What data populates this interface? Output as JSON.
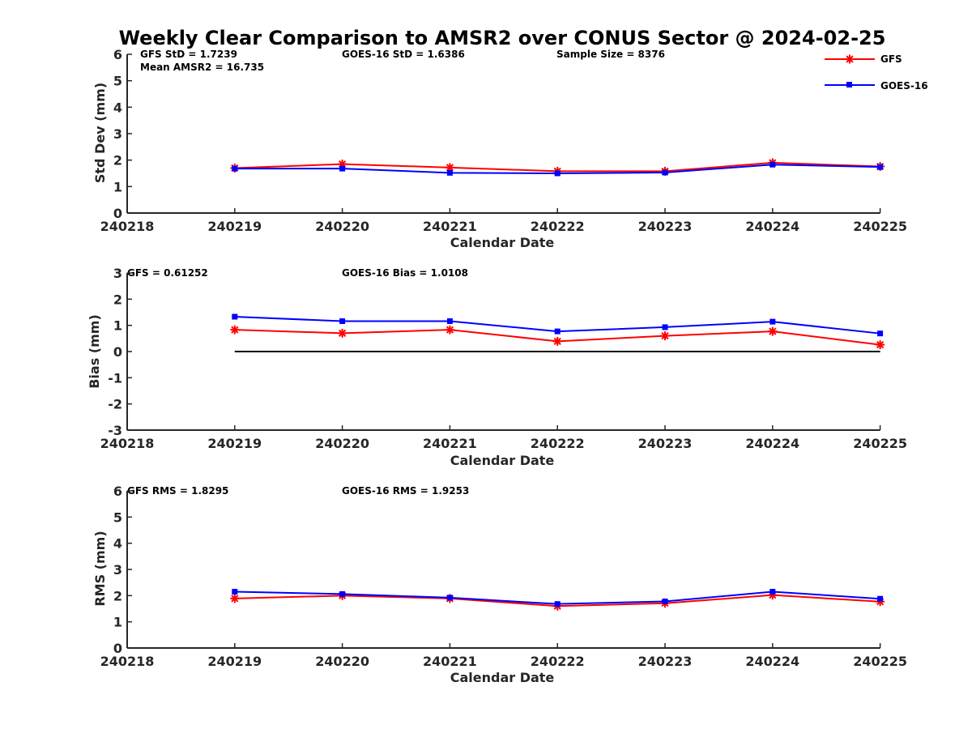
{
  "title": "Weekly Clear Comparison to AMSR2 over CONUS Sector @ 2024-02-25",
  "legend": [
    {
      "name": "GFS",
      "color": "#ff0000",
      "marker": "asterisk"
    },
    {
      "name": "GOES-16",
      "color": "#0000ff",
      "marker": "square"
    }
  ],
  "chart_data": [
    {
      "type": "line",
      "xlabel": "Calendar Date",
      "ylabel": "Std Dev (mm)",
      "x_ticks": [
        "240218",
        "240219",
        "240220",
        "240221",
        "240222",
        "240223",
        "240224",
        "240225"
      ],
      "ylim": [
        0,
        6
      ],
      "y_ticks": [
        "0",
        "1",
        "2",
        "3",
        "4",
        "5",
        "6"
      ],
      "annotations": {
        "gfs_stat": "GFS StD = 1.7239",
        "goes_stat": "GOES-16 StD = 1.6386",
        "sample": "Sample Size = 8376",
        "mean": "Mean AMSR2 = 16.735"
      },
      "categories": [
        "240219",
        "240220",
        "240221",
        "240222",
        "240223",
        "240224",
        "240225"
      ],
      "series": [
        {
          "name": "GFS",
          "values": [
            1.7,
            1.85,
            1.72,
            1.58,
            1.58,
            1.9,
            1.76
          ]
        },
        {
          "name": "GOES-16",
          "values": [
            1.68,
            1.68,
            1.52,
            1.5,
            1.53,
            1.83,
            1.74
          ]
        }
      ]
    },
    {
      "type": "line",
      "xlabel": "Calendar Date",
      "ylabel": "Bias (mm)",
      "x_ticks": [
        "240218",
        "240219",
        "240220",
        "240221",
        "240222",
        "240223",
        "240224",
        "240225"
      ],
      "ylim": [
        -3,
        3
      ],
      "y_ticks": [
        "-3",
        "-2",
        "-1",
        "0",
        "1",
        "2",
        "3"
      ],
      "zero_line": true,
      "annotations": {
        "gfs_stat": "GFS = 0.61252",
        "goes_stat": "GOES-16 Bias  = 1.0108"
      },
      "categories": [
        "240219",
        "240220",
        "240221",
        "240222",
        "240223",
        "240224",
        "240225"
      ],
      "series": [
        {
          "name": "GFS",
          "values": [
            0.83,
            0.7,
            0.83,
            0.39,
            0.6,
            0.77,
            0.26
          ]
        },
        {
          "name": "GOES-16",
          "values": [
            1.33,
            1.16,
            1.16,
            0.77,
            0.93,
            1.14,
            0.69
          ]
        }
      ]
    },
    {
      "type": "line",
      "xlabel": "Calendar Date",
      "ylabel": "RMS (mm)",
      "x_ticks": [
        "240218",
        "240219",
        "240220",
        "240221",
        "240222",
        "240223",
        "240224",
        "240225"
      ],
      "ylim": [
        0,
        6
      ],
      "y_ticks": [
        "0",
        "1",
        "2",
        "3",
        "4",
        "5",
        "6"
      ],
      "annotations": {
        "gfs_stat": "GFS RMS = 1.8295",
        "goes_stat": "GOES-16 RMS = 1.9253"
      },
      "categories": [
        "240219",
        "240220",
        "240221",
        "240222",
        "240223",
        "240224",
        "240225"
      ],
      "series": [
        {
          "name": "GFS",
          "values": [
            1.89,
            2.0,
            1.89,
            1.6,
            1.71,
            2.02,
            1.77
          ]
        },
        {
          "name": "GOES-16",
          "values": [
            2.15,
            2.06,
            1.92,
            1.68,
            1.78,
            2.15,
            1.88
          ]
        }
      ]
    }
  ]
}
